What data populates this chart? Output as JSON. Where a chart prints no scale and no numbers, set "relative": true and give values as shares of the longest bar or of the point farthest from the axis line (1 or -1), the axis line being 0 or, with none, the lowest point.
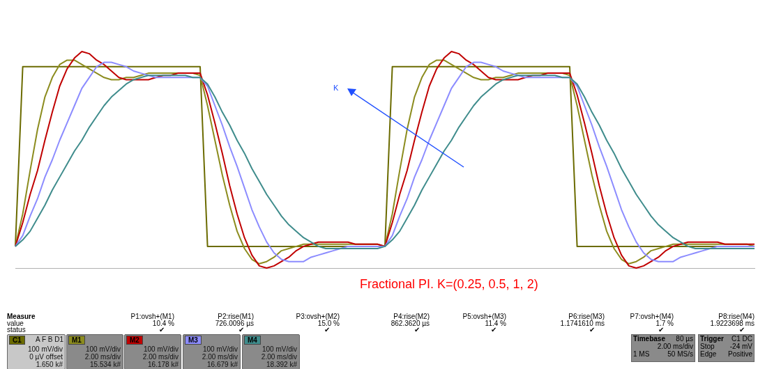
{
  "chart_data": {
    "type": "line",
    "relative": true,
    "legend": "bottom",
    "marker": "none",
    "line_style": "solid",
    "categories": [
      null,
      null,
      null,
      null,
      null,
      null,
      null,
      null,
      null,
      null,
      null,
      null,
      null,
      null,
      null,
      null,
      null,
      null,
      null,
      null,
      null,
      null,
      null,
      null,
      null,
      null,
      null,
      null,
      null,
      null,
      null,
      null,
      null,
      null,
      null,
      null,
      null,
      null,
      null,
      null,
      null,
      null,
      null,
      null,
      null,
      null,
      null,
      null,
      null,
      null,
      null,
      null,
      null,
      null,
      null,
      null,
      null,
      null,
      null,
      null,
      null,
      null,
      null,
      null,
      null,
      null,
      null,
      null,
      null,
      null,
      null,
      null,
      null,
      null,
      null,
      null,
      null,
      null,
      null,
      null,
      null,
      null,
      null,
      null,
      null,
      null,
      null,
      null,
      null,
      null,
      null,
      null,
      null,
      null,
      null,
      null,
      null,
      null,
      null,
      null,
      null
    ],
    "series": [
      {
        "name": "C1",
        "color": "#6b6b00",
        "values": [
          0.1,
          0.93,
          0.93,
          0.93,
          0.93,
          0.93,
          0.93,
          0.93,
          0.93,
          0.93,
          0.93,
          0.93,
          0.93,
          0.93,
          0.93,
          0.93,
          0.93,
          0.93,
          0.93,
          0.93,
          0.93,
          0.93,
          0.93,
          0.93,
          0.93,
          0.93,
          0.1,
          0.1,
          0.1,
          0.1,
          0.1,
          0.1,
          0.1,
          0.1,
          0.1,
          0.1,
          0.1,
          0.1,
          0.1,
          0.1,
          0.1,
          0.1,
          0.1,
          0.1,
          0.1,
          0.1,
          0.1,
          0.1,
          0.1,
          0.1,
          0.1,
          0.93,
          0.93,
          0.93,
          0.93,
          0.93,
          0.93,
          0.93,
          0.93,
          0.93,
          0.93,
          0.93,
          0.93,
          0.93,
          0.93,
          0.93,
          0.93,
          0.93,
          0.93,
          0.93,
          0.93,
          0.93,
          0.93,
          0.93,
          0.93,
          0.93,
          0.1,
          0.1,
          0.1,
          0.1,
          0.1,
          0.1,
          0.1,
          0.1,
          0.1,
          0.1,
          0.1,
          0.1,
          0.1,
          0.1,
          0.1,
          0.1,
          0.1,
          0.1,
          0.1,
          0.1,
          0.1,
          0.1,
          0.1,
          0.1,
          0.1
        ]
      },
      {
        "name": "M1",
        "color": "#8c8c1e",
        "values": [
          0.1,
          0.25,
          0.45,
          0.64,
          0.79,
          0.88,
          0.94,
          0.96,
          0.96,
          0.94,
          0.92,
          0.9,
          0.88,
          0.87,
          0.87,
          0.88,
          0.88,
          0.89,
          0.9,
          0.9,
          0.9,
          0.9,
          0.9,
          0.9,
          0.9,
          0.89,
          0.75,
          0.59,
          0.43,
          0.29,
          0.17,
          0.09,
          0.04,
          0.02,
          0.03,
          0.05,
          0.08,
          0.09,
          0.1,
          0.11,
          0.11,
          0.11,
          0.11,
          0.11,
          0.11,
          0.11,
          0.11,
          0.11,
          0.11,
          0.11,
          0.1,
          0.25,
          0.45,
          0.64,
          0.79,
          0.88,
          0.94,
          0.96,
          0.96,
          0.94,
          0.92,
          0.9,
          0.88,
          0.87,
          0.87,
          0.88,
          0.88,
          0.89,
          0.9,
          0.9,
          0.9,
          0.9,
          0.9,
          0.9,
          0.9,
          0.89,
          0.75,
          0.59,
          0.43,
          0.29,
          0.17,
          0.09,
          0.04,
          0.02,
          0.03,
          0.05,
          0.08,
          0.09,
          0.1,
          0.11,
          0.11,
          0.11,
          0.11,
          0.11,
          0.11,
          0.11,
          0.11,
          0.11,
          0.11,
          0.11,
          0.1
        ]
      },
      {
        "name": "M2",
        "color": "#c00000",
        "values": [
          0.1,
          0.21,
          0.34,
          0.45,
          0.59,
          0.72,
          0.84,
          0.92,
          0.97,
          1.0,
          0.99,
          0.96,
          0.94,
          0.91,
          0.88,
          0.87,
          0.87,
          0.87,
          0.87,
          0.88,
          0.89,
          0.89,
          0.9,
          0.9,
          0.9,
          0.9,
          0.8,
          0.67,
          0.53,
          0.38,
          0.25,
          0.14,
          0.06,
          0.01,
          0.0,
          0.01,
          0.03,
          0.05,
          0.08,
          0.1,
          0.11,
          0.12,
          0.12,
          0.12,
          0.12,
          0.12,
          0.11,
          0.11,
          0.11,
          0.11,
          0.1,
          0.21,
          0.34,
          0.45,
          0.59,
          0.72,
          0.84,
          0.92,
          0.97,
          1.0,
          0.99,
          0.96,
          0.94,
          0.91,
          0.88,
          0.87,
          0.87,
          0.87,
          0.87,
          0.88,
          0.89,
          0.89,
          0.9,
          0.9,
          0.9,
          0.9,
          0.8,
          0.67,
          0.53,
          0.38,
          0.25,
          0.14,
          0.06,
          0.01,
          0.0,
          0.01,
          0.03,
          0.05,
          0.08,
          0.1,
          0.11,
          0.12,
          0.12,
          0.12,
          0.12,
          0.12,
          0.11,
          0.11,
          0.11,
          0.11,
          0.11
        ]
      },
      {
        "name": "M3",
        "color": "#8c8cff",
        "values": [
          0.1,
          0.15,
          0.24,
          0.32,
          0.42,
          0.5,
          0.59,
          0.67,
          0.75,
          0.83,
          0.88,
          0.93,
          0.95,
          0.95,
          0.94,
          0.93,
          0.91,
          0.9,
          0.89,
          0.88,
          0.88,
          0.88,
          0.88,
          0.88,
          0.88,
          0.88,
          0.84,
          0.75,
          0.66,
          0.56,
          0.47,
          0.37,
          0.27,
          0.19,
          0.12,
          0.07,
          0.04,
          0.03,
          0.03,
          0.03,
          0.05,
          0.06,
          0.07,
          0.08,
          0.09,
          0.1,
          0.1,
          0.1,
          0.1,
          0.1,
          0.1,
          0.15,
          0.24,
          0.32,
          0.42,
          0.5,
          0.59,
          0.67,
          0.75,
          0.83,
          0.88,
          0.93,
          0.95,
          0.95,
          0.94,
          0.93,
          0.91,
          0.9,
          0.89,
          0.88,
          0.88,
          0.88,
          0.88,
          0.88,
          0.88,
          0.88,
          0.84,
          0.75,
          0.66,
          0.56,
          0.47,
          0.37,
          0.27,
          0.19,
          0.12,
          0.07,
          0.04,
          0.03,
          0.03,
          0.03,
          0.05,
          0.06,
          0.07,
          0.08,
          0.09,
          0.1,
          0.1,
          0.1,
          0.1,
          0.1,
          0.1
        ]
      },
      {
        "name": "M4",
        "color": "#3f8c8c",
        "values": [
          0.1,
          0.13,
          0.17,
          0.23,
          0.29,
          0.36,
          0.42,
          0.48,
          0.54,
          0.59,
          0.65,
          0.7,
          0.75,
          0.79,
          0.82,
          0.85,
          0.87,
          0.88,
          0.89,
          0.89,
          0.89,
          0.89,
          0.89,
          0.89,
          0.88,
          0.88,
          0.85,
          0.79,
          0.72,
          0.66,
          0.59,
          0.53,
          0.46,
          0.4,
          0.34,
          0.29,
          0.24,
          0.2,
          0.17,
          0.14,
          0.12,
          0.1,
          0.09,
          0.09,
          0.09,
          0.09,
          0.09,
          0.09,
          0.09,
          0.09,
          0.1,
          0.13,
          0.17,
          0.23,
          0.29,
          0.36,
          0.42,
          0.48,
          0.54,
          0.59,
          0.65,
          0.7,
          0.75,
          0.79,
          0.82,
          0.85,
          0.87,
          0.88,
          0.89,
          0.89,
          0.89,
          0.89,
          0.89,
          0.89,
          0.88,
          0.88,
          0.85,
          0.79,
          0.72,
          0.66,
          0.59,
          0.53,
          0.46,
          0.4,
          0.34,
          0.29,
          0.24,
          0.2,
          0.17,
          0.14,
          0.12,
          0.1,
          0.09,
          0.09,
          0.09,
          0.09,
          0.09,
          0.09,
          0.09,
          0.09,
          0.09
        ]
      }
    ],
    "annotations": [
      "K",
      "Fractional PI. K=(0.25, 0.5, 1, 2)",
      "Measure",
      "value",
      "status",
      "P1:ovsh+(M1)",
      "10.4 %",
      "✔",
      "P2:rise(M1)",
      "726.0096 µs",
      "✔",
      "P3:ovsh+(M2)",
      "15.0 %",
      "✔",
      "P4:rise(M2)",
      "862.3620 µs",
      "✔",
      "P5:ovsh+(M3)",
      "11.4 %",
      "✔",
      "P6:rise(M3)",
      "1.1741610 ms",
      "✔",
      "P7:ovsh+(M4)",
      "1.7 %",
      "✔",
      "P8:rise(M4)",
      "1.9223698 ms",
      "✔",
      "A F B D1",
      "100 mV/div",
      "0 µV offset",
      "1.650 k#",
      "100 mV/div",
      "2.00 ms/div",
      "15.534 k#",
      "100 mV/div",
      "2.00 ms/div",
      "16.178 k#",
      "100 mV/div",
      "2.00 ms/div",
      "16.679 k#",
      "100 mV/div",
      "2.00 ms/div",
      "18.392 k#",
      "Timebase",
      "80 µs",
      "2.00 ms/div",
      "1 MS",
      "50 MS/s",
      "Trigger",
      "C1 DC",
      "Stop",
      "-24 mV",
      "Edge",
      "Positive"
    ]
  }
}
